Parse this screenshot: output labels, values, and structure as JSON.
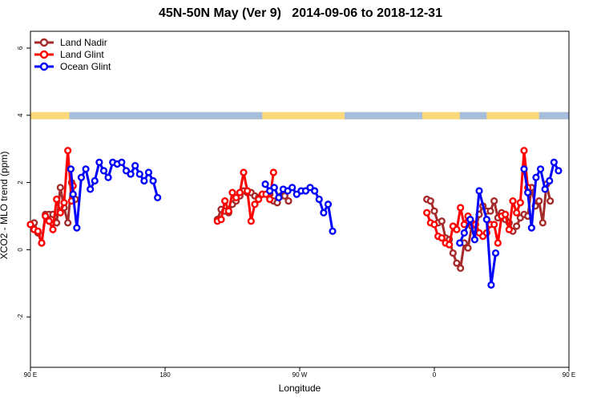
{
  "chart_data": {
    "type": "line",
    "title": "45N-50N May (Ver 9)   2014-09-06 to 2018-12-31",
    "xlabel": "Longitude",
    "ylabel": "XCO2 - MLO trend (ppm)",
    "xlim": [
      90,
      450
    ],
    "ylim": [
      -3.5,
      6.5
    ],
    "x_ticks": [
      {
        "value": 90,
        "label": "90 E"
      },
      {
        "value": 180,
        "label": "180"
      },
      {
        "value": 270,
        "label": "90 W"
      },
      {
        "value": 360,
        "label": "0"
      },
      {
        "value": 450,
        "label": "90 E"
      },
      {
        "value": 540,
        "label": "180"
      }
    ],
    "y_ticks": [
      -2,
      0,
      2,
      4,
      6
    ],
    "legend": {
      "position": "top-left"
    },
    "land_mask_band": {
      "y": 4,
      "land_color": "#fbd97a",
      "ocean_color": "#a6bedb"
    },
    "series": [
      {
        "name": "Land Nadir",
        "color": "#a52a2a",
        "points": [
          [
            90,
            0.75
          ],
          [
            92.5,
            0.8
          ],
          [
            95,
            0.5
          ],
          [
            97.5,
            0.2
          ],
          [
            100,
            1.05
          ],
          [
            102.5,
            1.05
          ],
          [
            105,
            1.05
          ],
          [
            107.5,
            0.8
          ],
          [
            110,
            1.85
          ],
          [
            112.5,
            1.25
          ],
          [
            115,
            0.8
          ],
          [
            117.5,
            2.0
          ],
          [
            120,
            1.5
          ],
          [
            215,
            0.9
          ],
          [
            217.5,
            1.2
          ],
          [
            220,
            1.15
          ],
          [
            222.5,
            1.1
          ],
          [
            225,
            1.35
          ],
          [
            227.5,
            1.45
          ],
          [
            230,
            1.6
          ],
          [
            232.5,
            1.75
          ],
          [
            235,
            1.7
          ],
          [
            237.5,
            1.7
          ],
          [
            240,
            1.6
          ],
          [
            242.5,
            1.55
          ],
          [
            245,
            1.65
          ],
          [
            250,
            1.65
          ],
          [
            252.5,
            1.45
          ],
          [
            255,
            1.4
          ],
          [
            257.5,
            1.6
          ],
          [
            260,
            1.6
          ],
          [
            262.5,
            1.45
          ],
          [
            355,
            1.5
          ],
          [
            357.5,
            1.45
          ],
          [
            360,
            1.15
          ],
          [
            362.5,
            0.8
          ],
          [
            365,
            0.85
          ],
          [
            367.5,
            0.35
          ],
          [
            370,
            0.3
          ],
          [
            372.5,
            -0.1
          ],
          [
            375,
            -0.4
          ],
          [
            377.5,
            -0.55
          ],
          [
            380,
            0.2
          ],
          [
            382.5,
            0.05
          ],
          [
            385,
            0.7
          ],
          [
            387.5,
            0.6
          ],
          [
            390,
            1.05
          ],
          [
            392.5,
            1.3
          ],
          [
            395,
            1.15
          ],
          [
            397.5,
            1.15
          ],
          [
            400,
            1.45
          ],
          [
            402.5,
            0.95
          ],
          [
            405,
            1.1
          ],
          [
            407.5,
            0.9
          ],
          [
            410,
            0.8
          ],
          [
            412.5,
            0.55
          ],
          [
            415,
            0.7
          ],
          [
            417.5,
            0.95
          ],
          [
            420,
            1.05
          ],
          [
            422.5,
            1.0
          ],
          [
            425,
            1.85
          ],
          [
            427.5,
            1.3
          ],
          [
            430,
            1.45
          ],
          [
            432.5,
            0.8
          ],
          [
            435,
            1.95
          ],
          [
            437.5,
            1.45
          ]
        ]
      },
      {
        "name": "Land Glint",
        "color": "#ff0000",
        "points": [
          [
            90,
            0.75
          ],
          [
            92.5,
            0.6
          ],
          [
            95,
            0.55
          ],
          [
            97.5,
            0.2
          ],
          [
            100,
            1.0
          ],
          [
            102.5,
            0.85
          ],
          [
            105,
            0.6
          ],
          [
            107.5,
            1.5
          ],
          [
            110,
            1.1
          ],
          [
            112.5,
            1.4
          ],
          [
            115,
            2.95
          ],
          [
            117.5,
            1.45
          ],
          [
            118.5,
            1.9
          ],
          [
            215,
            0.85
          ],
          [
            217.5,
            0.9
          ],
          [
            220,
            1.45
          ],
          [
            222.5,
            1.15
          ],
          [
            225,
            1.7
          ],
          [
            227.5,
            1.55
          ],
          [
            230,
            1.7
          ],
          [
            232.5,
            2.3
          ],
          [
            235,
            1.75
          ],
          [
            237.5,
            0.85
          ],
          [
            240,
            1.35
          ],
          [
            242.5,
            1.5
          ],
          [
            245,
            1.65
          ],
          [
            247.5,
            1.65
          ],
          [
            250,
            1.5
          ],
          [
            252.5,
            2.3
          ],
          [
            355,
            1.1
          ],
          [
            357.5,
            0.8
          ],
          [
            360,
            0.75
          ],
          [
            362.5,
            0.4
          ],
          [
            365,
            0.35
          ],
          [
            367.5,
            0.2
          ],
          [
            370,
            0.15
          ],
          [
            372.5,
            0.7
          ],
          [
            375,
            0.6
          ],
          [
            377.5,
            1.25
          ],
          [
            380,
            0.75
          ],
          [
            382.5,
            1.0
          ],
          [
            385,
            0.8
          ],
          [
            387.5,
            0.75
          ],
          [
            390,
            0.5
          ],
          [
            392.5,
            0.4
          ],
          [
            395,
            0.5
          ],
          [
            397.5,
            0.75
          ],
          [
            400,
            0.75
          ],
          [
            402.5,
            0.2
          ],
          [
            405,
            1.0
          ],
          [
            407.5,
            1.05
          ],
          [
            410,
            0.6
          ],
          [
            412.5,
            1.45
          ],
          [
            415,
            1.1
          ],
          [
            417.5,
            1.4
          ],
          [
            420,
            2.95
          ],
          [
            422.5,
            1.85
          ]
        ]
      },
      {
        "name": "Ocean Glint",
        "color": "#0000ff",
        "points": [
          [
            117,
            2.4
          ],
          [
            118.5,
            1.65
          ],
          [
            121,
            0.65
          ],
          [
            124,
            2.15
          ],
          [
            127,
            2.4
          ],
          [
            130,
            1.8
          ],
          [
            133,
            2.05
          ],
          [
            136,
            2.6
          ],
          [
            139,
            2.35
          ],
          [
            142,
            2.15
          ],
          [
            145,
            2.6
          ],
          [
            148,
            2.55
          ],
          [
            151,
            2.6
          ],
          [
            154,
            2.35
          ],
          [
            157,
            2.25
          ],
          [
            160,
            2.5
          ],
          [
            163,
            2.25
          ],
          [
            166,
            2.05
          ],
          [
            169,
            2.3
          ],
          [
            172,
            2.05
          ],
          [
            175,
            1.55
          ],
          [
            247,
            1.95
          ],
          [
            250,
            1.75
          ],
          [
            253,
            1.85
          ],
          [
            256,
            1.55
          ],
          [
            259,
            1.8
          ],
          [
            262,
            1.75
          ],
          [
            265,
            1.85
          ],
          [
            268,
            1.65
          ],
          [
            271,
            1.75
          ],
          [
            274,
            1.75
          ],
          [
            277,
            1.85
          ],
          [
            280,
            1.75
          ],
          [
            283,
            1.5
          ],
          [
            286,
            1.1
          ],
          [
            289,
            1.35
          ],
          [
            292,
            0.55
          ],
          [
            377,
            0.2
          ],
          [
            380,
            0.5
          ],
          [
            384,
            0.9
          ],
          [
            387,
            0.3
          ],
          [
            390,
            1.75
          ],
          [
            395,
            0.9
          ],
          [
            398,
            -1.05
          ],
          [
            401,
            -0.1
          ],
          [
            420,
            2.4
          ],
          [
            422.5,
            1.7
          ],
          [
            425,
            0.65
          ],
          [
            428,
            2.15
          ],
          [
            431,
            2.4
          ],
          [
            434,
            1.8
          ],
          [
            437,
            2.05
          ],
          [
            440,
            2.6
          ],
          [
            443,
            2.35
          ]
        ]
      }
    ]
  }
}
